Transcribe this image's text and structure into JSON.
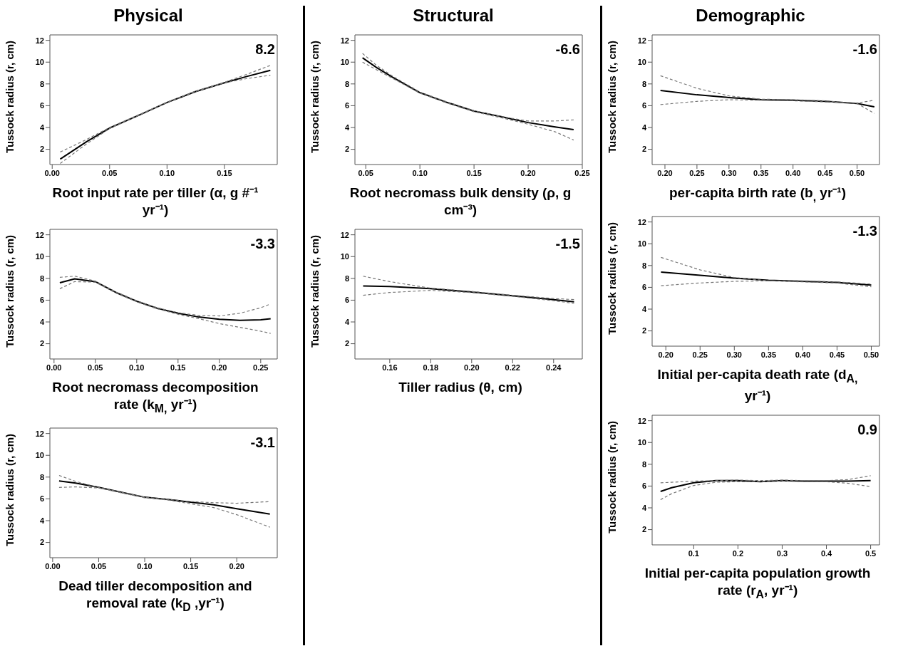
{
  "chart_data": [
    {
      "type": "line",
      "title": "Physical",
      "xlabel": "Root input rate per tiller (α, g #⁻¹ yr⁻¹)",
      "ylabel": "Tussock radius (r, cm)",
      "annotations": [
        "8.2"
      ],
      "xlim": [
        -0.002,
        0.196
      ],
      "xticks": [
        {
          "value": 0,
          "label": "0.00"
        },
        0.05,
        {
          "value": 0.1,
          "label": "0.10"
        },
        0.15
      ],
      "ylim": [
        0.6,
        12.5
      ],
      "yticks": [
        2,
        4,
        6,
        8,
        10,
        12
      ],
      "grid": false,
      "legend": false,
      "marker": "none",
      "x": [
        0.007,
        0.03,
        0.05,
        0.075,
        0.1,
        0.125,
        0.15,
        0.17,
        0.19
      ],
      "series": [
        {
          "color": "#000000",
          "line_style": "solid",
          "values": [
            1.1,
            2.7,
            3.95,
            5.1,
            6.3,
            7.3,
            8.1,
            8.7,
            9.25
          ]
        },
        {
          "color": "#777777",
          "line_style": "dashed",
          "values": [
            0.7,
            2.5,
            3.9,
            5.1,
            6.3,
            7.3,
            8.1,
            8.5,
            8.8
          ]
        },
        {
          "color": "#777777",
          "line_style": "dashed",
          "values": [
            1.75,
            2.9,
            4.0,
            5.15,
            6.3,
            7.35,
            8.15,
            8.9,
            9.7
          ]
        }
      ]
    },
    {
      "type": "line",
      "xlabel": "Root necromass decomposition rate (k$_{M,}$ yr⁻¹)",
      "ylabel": "Tussock radius (r, cm)",
      "annotations": [
        "-3.3"
      ],
      "xlim": [
        -0.005,
        0.27
      ],
      "xticks": [
        {
          "value": 0,
          "label": "0.00"
        },
        0.05,
        {
          "value": 0.1,
          "label": "0.10"
        },
        0.15,
        {
          "value": 0.2,
          "label": "0.20"
        },
        0.25
      ],
      "ylim": [
        0.6,
        12.5
      ],
      "yticks": [
        2,
        4,
        6,
        8,
        10,
        12
      ],
      "grid": false,
      "legend": false,
      "marker": "none",
      "x": [
        0.007,
        0.025,
        0.05,
        0.075,
        0.1,
        0.125,
        0.15,
        0.175,
        0.2,
        0.225,
        0.25,
        0.262
      ],
      "series": [
        {
          "color": "#000000",
          "line_style": "solid",
          "values": [
            7.6,
            7.95,
            7.7,
            6.7,
            5.9,
            5.25,
            4.8,
            4.45,
            4.25,
            4.15,
            4.2,
            4.3
          ]
        },
        {
          "color": "#777777",
          "line_style": "dashed",
          "values": [
            7.05,
            7.7,
            7.65,
            6.65,
            5.85,
            5.2,
            4.7,
            4.3,
            3.85,
            3.5,
            3.15,
            2.95
          ]
        },
        {
          "color": "#777777",
          "line_style": "dashed",
          "values": [
            8.1,
            8.2,
            7.75,
            6.75,
            5.95,
            5.3,
            4.85,
            4.6,
            4.55,
            4.8,
            5.3,
            5.65
          ]
        }
      ]
    },
    {
      "type": "line",
      "xlabel": "Dead tiller decomposition and removal rate (k$_{D}$ ,yr⁻¹)",
      "ylabel": "Tussock radius (r, cm)",
      "annotations": [
        "-3.1"
      ],
      "xlim": [
        -0.003,
        0.244
      ],
      "xticks": [
        {
          "value": 0,
          "label": "0.00"
        },
        0.05,
        {
          "value": 0.1,
          "label": "0.10"
        },
        0.15,
        {
          "value": 0.2,
          "label": "0.20"
        }
      ],
      "ylim": [
        0.6,
        12.5
      ],
      "yticks": [
        2,
        4,
        6,
        8,
        10,
        12
      ],
      "grid": false,
      "legend": false,
      "marker": "none",
      "x": [
        0.007,
        0.025,
        0.05,
        0.075,
        0.1,
        0.125,
        0.15,
        0.175,
        0.2,
        0.236
      ],
      "series": [
        {
          "color": "#000000",
          "line_style": "solid",
          "values": [
            7.65,
            7.45,
            7.05,
            6.6,
            6.15,
            5.95,
            5.7,
            5.45,
            5.1,
            4.6
          ]
        },
        {
          "color": "#777777",
          "line_style": "dashed",
          "values": [
            7.05,
            7.1,
            7.0,
            6.55,
            6.1,
            5.9,
            5.55,
            5.2,
            4.55,
            3.4
          ]
        },
        {
          "color": "#777777",
          "line_style": "dashed",
          "values": [
            8.15,
            7.6,
            7.05,
            6.6,
            6.15,
            5.95,
            5.75,
            5.65,
            5.6,
            5.75
          ]
        }
      ]
    },
    {
      "type": "line",
      "title": "Structural",
      "xlabel": "Root necromass bulk density (ρ, g cm⁻³)",
      "ylabel": "Tussock radius (r, cm)",
      "annotations": [
        "-6.6"
      ],
      "xlim": [
        0.04,
        0.25
      ],
      "xticks": [
        0.05,
        {
          "value": 0.1,
          "label": "0.10"
        },
        0.15,
        {
          "value": 0.2,
          "label": "0.20"
        },
        0.25
      ],
      "ylim": [
        0.6,
        12.5
      ],
      "yticks": [
        2,
        4,
        6,
        8,
        10,
        12
      ],
      "grid": false,
      "legend": false,
      "marker": "none",
      "x": [
        0.047,
        0.06,
        0.075,
        0.1,
        0.125,
        0.15,
        0.175,
        0.2,
        0.225,
        0.242
      ],
      "series": [
        {
          "color": "#000000",
          "line_style": "solid",
          "values": [
            10.4,
            9.5,
            8.6,
            7.2,
            6.3,
            5.5,
            5.0,
            4.45,
            4.05,
            3.8
          ]
        },
        {
          "color": "#777777",
          "line_style": "dashed",
          "values": [
            10.0,
            9.3,
            8.5,
            7.15,
            6.25,
            5.45,
            4.9,
            4.3,
            3.6,
            2.85
          ]
        },
        {
          "color": "#777777",
          "line_style": "dashed",
          "values": [
            10.8,
            9.7,
            8.7,
            7.25,
            6.35,
            5.55,
            5.0,
            4.6,
            4.6,
            4.7
          ]
        }
      ]
    },
    {
      "type": "line",
      "xlabel": "Tiller radius (θ, cm)",
      "ylabel": "Tussock radius (r, cm)",
      "annotations": [
        "-1.5"
      ],
      "xlim": [
        0.143,
        0.254
      ],
      "xticks": [
        0.16,
        0.18,
        {
          "value": 0.2,
          "label": "0.20"
        },
        0.22,
        0.24
      ],
      "ylim": [
        0.6,
        12.5
      ],
      "yticks": [
        2,
        4,
        6,
        8,
        10,
        12
      ],
      "grid": false,
      "legend": false,
      "marker": "none",
      "x": [
        0.147,
        0.16,
        0.18,
        0.2,
        0.22,
        0.24,
        0.25
      ],
      "series": [
        {
          "color": "#000000",
          "line_style": "solid",
          "values": [
            7.3,
            7.25,
            7.05,
            6.75,
            6.4,
            6.05,
            5.85
          ]
        },
        {
          "color": "#777777",
          "line_style": "dashed",
          "values": [
            6.45,
            6.7,
            6.9,
            6.7,
            6.35,
            5.95,
            5.7
          ]
        },
        {
          "color": "#777777",
          "line_style": "dashed",
          "values": [
            8.2,
            7.7,
            7.1,
            6.8,
            6.45,
            6.15,
            6.05
          ]
        }
      ]
    },
    {
      "type": "line",
      "title": "Demographic",
      "xlabel": "per-capita birth rate (b$_{,}$ yr⁻¹)",
      "ylabel": "Tussock radius (r, cm)",
      "annotations": [
        "-1.6"
      ],
      "xlim": [
        0.18,
        0.535
      ],
      "xticks": [
        {
          "value": 0.2,
          "label": "0.20"
        },
        0.25,
        {
          "value": 0.3,
          "label": "0.30"
        },
        0.35,
        {
          "value": 0.4,
          "label": "0.40"
        },
        0.45,
        {
          "value": 0.5,
          "label": "0.50"
        }
      ],
      "ylim": [
        0.6,
        12.5
      ],
      "yticks": [
        2,
        4,
        6,
        8,
        10,
        12
      ],
      "grid": false,
      "legend": false,
      "marker": "none",
      "x": [
        0.193,
        0.25,
        0.3,
        0.35,
        0.4,
        0.45,
        0.5,
        0.527
      ],
      "series": [
        {
          "color": "#000000",
          "line_style": "solid",
          "values": [
            7.4,
            7.0,
            6.75,
            6.55,
            6.5,
            6.4,
            6.2,
            5.9
          ]
        },
        {
          "color": "#777777",
          "line_style": "dashed",
          "values": [
            6.1,
            6.4,
            6.55,
            6.5,
            6.45,
            6.35,
            6.25,
            6.5
          ]
        },
        {
          "color": "#777777",
          "line_style": "dashed",
          "values": [
            8.75,
            7.6,
            6.9,
            6.6,
            6.55,
            6.45,
            6.2,
            5.3
          ]
        }
      ]
    },
    {
      "type": "line",
      "xlabel": "Initial per-capita death rate (d$_{A,}$ yr⁻¹)",
      "ylabel": "Tussock radius (r, cm)",
      "annotations": [
        "-1.3"
      ],
      "xlim": [
        0.18,
        0.512
      ],
      "xticks": [
        {
          "value": 0.2,
          "label": "0.20"
        },
        0.25,
        {
          "value": 0.3,
          "label": "0.30"
        },
        0.35,
        {
          "value": 0.4,
          "label": "0.40"
        },
        0.45,
        {
          "value": 0.5,
          "label": "0.50"
        }
      ],
      "ylim": [
        0.6,
        12.5
      ],
      "yticks": [
        2,
        4,
        6,
        8,
        10,
        12
      ],
      "grid": false,
      "legend": false,
      "marker": "none",
      "x": [
        0.193,
        0.25,
        0.3,
        0.35,
        0.4,
        0.45,
        0.5
      ],
      "series": [
        {
          "color": "#000000",
          "line_style": "solid",
          "values": [
            7.4,
            7.1,
            6.85,
            6.65,
            6.55,
            6.45,
            6.2
          ]
        },
        {
          "color": "#777777",
          "line_style": "dashed",
          "values": [
            6.15,
            6.4,
            6.55,
            6.6,
            6.5,
            6.4,
            6.05
          ]
        },
        {
          "color": "#777777",
          "line_style": "dashed",
          "values": [
            8.75,
            7.6,
            6.9,
            6.6,
            6.6,
            6.5,
            6.3
          ]
        }
      ]
    },
    {
      "type": "line",
      "xlabel": "Initial per-capita population growth rate (r$_{A}$, yr⁻¹)",
      "ylabel": "Tussock radius (r, cm)",
      "annotations": [
        "0.9"
      ],
      "xlim": [
        0.006,
        0.52
      ],
      "xticks": [
        0.1,
        0.2,
        0.3,
        0.4,
        0.5
      ],
      "ylim": [
        0.6,
        12.5
      ],
      "yticks": [
        2,
        4,
        6,
        8,
        10,
        12
      ],
      "grid": false,
      "legend": false,
      "marker": "none",
      "x": [
        0.025,
        0.05,
        0.1,
        0.15,
        0.2,
        0.25,
        0.3,
        0.35,
        0.4,
        0.45,
        0.5
      ],
      "series": [
        {
          "color": "#000000",
          "line_style": "solid",
          "values": [
            5.5,
            5.85,
            6.3,
            6.5,
            6.5,
            6.4,
            6.5,
            6.45,
            6.45,
            6.45,
            6.5
          ]
        },
        {
          "color": "#777777",
          "line_style": "dashed",
          "values": [
            4.75,
            5.3,
            6.05,
            6.35,
            6.4,
            6.4,
            6.45,
            6.4,
            6.4,
            6.25,
            5.95
          ]
        },
        {
          "color": "#777777",
          "line_style": "dashed",
          "values": [
            6.3,
            6.35,
            6.45,
            6.5,
            6.55,
            6.5,
            6.55,
            6.5,
            6.5,
            6.6,
            6.95
          ]
        }
      ]
    }
  ]
}
